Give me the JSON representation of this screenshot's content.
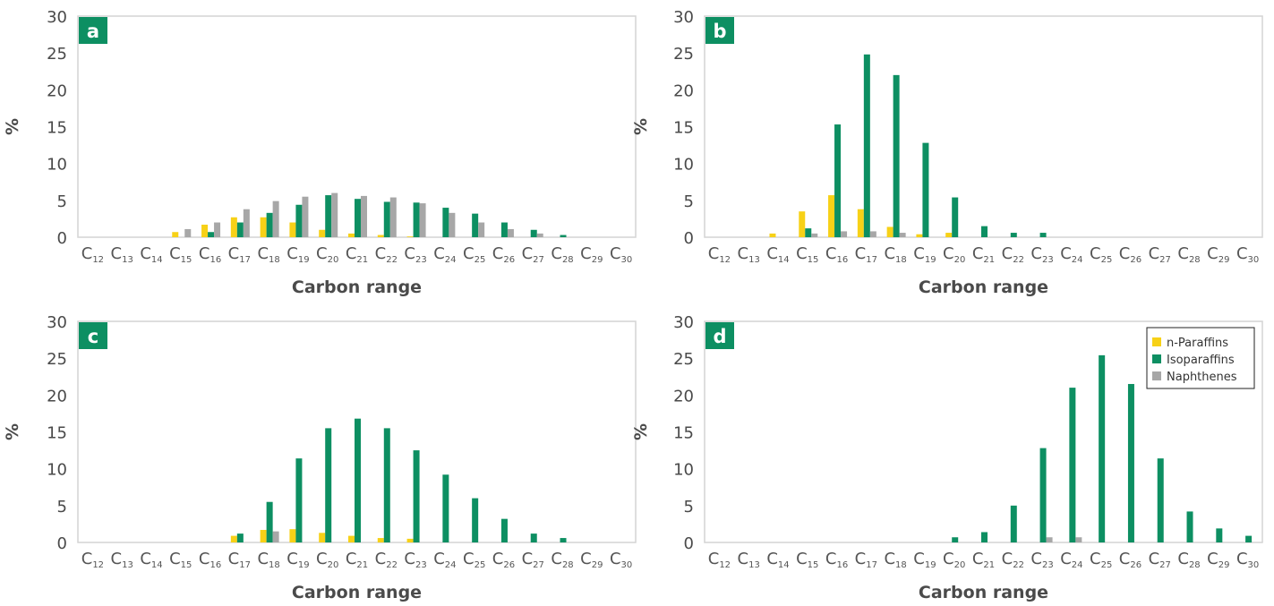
{
  "colors": {
    "n_paraffins": "#f7d117",
    "isoparaffins": "#0d8f62",
    "naphthenes": "#a7a7a7",
    "panel_label_bg": "#0d8f62",
    "frame": "#d4d4d4"
  },
  "legend": {
    "items": [
      "n-Paraffins",
      "Isoparaffins",
      "Naphthenes"
    ],
    "placement": "top-right of panel d"
  },
  "chart_data": [
    {
      "type": "bar",
      "panel_label": "a",
      "xlabel": "Carbon range",
      "ylabel": "%",
      "ylim": [
        0,
        30
      ],
      "yticks": [
        "0",
        "5",
        "10",
        "15",
        "20",
        "25",
        "30"
      ],
      "categories": [
        "12",
        "13",
        "14",
        "15",
        "16",
        "17",
        "18",
        "19",
        "20",
        "21",
        "22",
        "23",
        "24",
        "25",
        "26",
        "27",
        "28",
        "29",
        "30"
      ],
      "category_prefix": "C",
      "grid": false,
      "series": [
        {
          "name": "n-Paraffins",
          "values": [
            0,
            0,
            0,
            0.7,
            1.7,
            2.7,
            2.7,
            2.0,
            1.0,
            0.5,
            0.3,
            0.1,
            0,
            0,
            0,
            0,
            0,
            0,
            0
          ]
        },
        {
          "name": "Isoparaffins",
          "values": [
            0,
            0,
            0,
            0,
            0.7,
            2.0,
            3.3,
            4.4,
            5.7,
            5.2,
            4.8,
            4.7,
            4.0,
            3.2,
            2.0,
            1.0,
            0.3,
            0,
            0
          ]
        },
        {
          "name": "Naphthenes",
          "values": [
            0,
            0,
            0,
            1.1,
            2.0,
            3.8,
            4.9,
            5.5,
            6.0,
            5.6,
            5.4,
            4.6,
            3.3,
            2.0,
            1.1,
            0.5,
            0,
            0,
            0
          ]
        }
      ]
    },
    {
      "type": "bar",
      "panel_label": "b",
      "xlabel": "Carbon range",
      "ylabel": "%",
      "ylim": [
        0,
        30
      ],
      "yticks": [
        "0",
        "5",
        "10",
        "15",
        "20",
        "25",
        "30"
      ],
      "categories": [
        "12",
        "13",
        "14",
        "15",
        "16",
        "17",
        "18",
        "19",
        "20",
        "21",
        "22",
        "23",
        "24",
        "25",
        "26",
        "27",
        "28",
        "29",
        "30"
      ],
      "category_prefix": "C",
      "grid": false,
      "series": [
        {
          "name": "n-Paraffins",
          "values": [
            0,
            0,
            0.5,
            3.5,
            5.7,
            3.8,
            1.4,
            0.4,
            0.6,
            0,
            0,
            0,
            0,
            0,
            0,
            0,
            0,
            0,
            0
          ]
        },
        {
          "name": "Isoparaffins",
          "values": [
            0,
            0,
            0,
            1.2,
            15.3,
            24.8,
            22.0,
            12.8,
            5.4,
            1.5,
            0.6,
            0.6,
            0,
            0,
            0,
            0,
            0,
            0,
            0
          ]
        },
        {
          "name": "Naphthenes",
          "values": [
            0,
            0,
            0,
            0.5,
            0.8,
            0.8,
            0.6,
            0,
            0,
            0,
            0,
            0,
            0,
            0,
            0,
            0,
            0,
            0,
            0
          ]
        }
      ]
    },
    {
      "type": "bar",
      "panel_label": "c",
      "xlabel": "Carbon range",
      "ylabel": "%",
      "ylim": [
        0,
        30
      ],
      "yticks": [
        "0",
        "5",
        "10",
        "15",
        "20",
        "25",
        "30"
      ],
      "categories": [
        "12",
        "13",
        "14",
        "15",
        "16",
        "17",
        "18",
        "19",
        "20",
        "21",
        "22",
        "23",
        "24",
        "25",
        "26",
        "27",
        "28",
        "29",
        "30"
      ],
      "category_prefix": "C",
      "grid": false,
      "series": [
        {
          "name": "n-Paraffins",
          "values": [
            0,
            0,
            0,
            0,
            0,
            0.9,
            1.7,
            1.8,
            1.3,
            0.9,
            0.6,
            0.5,
            0,
            0,
            0,
            0,
            0,
            0,
            0
          ]
        },
        {
          "name": "Isoparaffins",
          "values": [
            0,
            0,
            0,
            0,
            0,
            1.2,
            5.5,
            11.4,
            15.5,
            16.8,
            15.5,
            12.5,
            9.2,
            6.0,
            3.2,
            1.2,
            0.6,
            0,
            0
          ]
        },
        {
          "name": "Naphthenes",
          "values": [
            0,
            0,
            0,
            0,
            0,
            0,
            1.5,
            0,
            0,
            0,
            0,
            0,
            0,
            0,
            0,
            0,
            0,
            0,
            0
          ]
        }
      ]
    },
    {
      "type": "bar",
      "panel_label": "d",
      "xlabel": "Carbon range",
      "ylabel": "%",
      "ylim": [
        0,
        30
      ],
      "yticks": [
        "0",
        "5",
        "10",
        "15",
        "20",
        "25",
        "30"
      ],
      "categories": [
        "12",
        "13",
        "14",
        "15",
        "16",
        "17",
        "18",
        "19",
        "20",
        "21",
        "22",
        "23",
        "24",
        "25",
        "26",
        "27",
        "28",
        "29",
        "30"
      ],
      "category_prefix": "C",
      "grid": false,
      "series": [
        {
          "name": "n-Paraffins",
          "values": [
            0,
            0,
            0,
            0,
            0,
            0,
            0,
            0,
            0,
            0,
            0,
            0,
            0,
            0,
            0,
            0,
            0,
            0,
            0
          ]
        },
        {
          "name": "Isoparaffins",
          "values": [
            0,
            0,
            0,
            0,
            0,
            0,
            0,
            0,
            0.7,
            1.4,
            5.0,
            12.8,
            21.0,
            25.4,
            21.5,
            11.4,
            4.2,
            1.9,
            0.9
          ]
        },
        {
          "name": "Naphthenes",
          "values": [
            0,
            0,
            0,
            0,
            0,
            0,
            0,
            0,
            0,
            0,
            0,
            0.7,
            0.7,
            0,
            0,
            0,
            0,
            0,
            0
          ]
        }
      ]
    }
  ]
}
